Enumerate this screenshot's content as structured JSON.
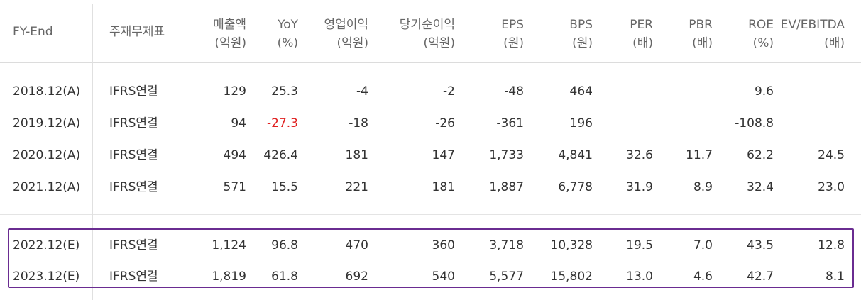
{
  "headers": [
    {
      "line1": "FY-End",
      "line2": ""
    },
    {
      "line1": "주재무제표",
      "line2": ""
    },
    {
      "line1": "매출액",
      "line2": "(억원)"
    },
    {
      "line1": "YoY",
      "line2": "(%)"
    },
    {
      "line1": "영업이익",
      "line2": "(억원)"
    },
    {
      "line1": "당기순이익",
      "line2": "(억원)"
    },
    {
      "line1": "EPS",
      "line2": "(원)"
    },
    {
      "line1": "BPS",
      "line2": "(원)"
    },
    {
      "line1": "PER",
      "line2": "(배)"
    },
    {
      "line1": "PBR",
      "line2": "(배)"
    },
    {
      "line1": "ROE",
      "line2": "(%)"
    },
    {
      "line1": "EV/EBITDA",
      "line2": "(배)"
    }
  ],
  "rows": [
    [
      "2018.12(A)",
      "IFRS연결",
      "129",
      "25.3",
      "-4",
      "-2",
      "-48",
      "464",
      "",
      "",
      "9.6",
      ""
    ],
    [
      "2019.12(A)",
      "IFRS연결",
      "94",
      "-27.3",
      "-18",
      "-26",
      "-361",
      "196",
      "",
      "",
      "-108.8",
      ""
    ],
    [
      "2020.12(A)",
      "IFRS연결",
      "494",
      "426.4",
      "181",
      "147",
      "1,733",
      "4,841",
      "32.6",
      "11.7",
      "62.2",
      "24.5"
    ],
    [
      "2021.12(A)",
      "IFRS연결",
      "571",
      "15.5",
      "221",
      "181",
      "1,887",
      "6,778",
      "31.9",
      "8.9",
      "32.4",
      "23.0"
    ],
    [
      "2022.12(E)",
      "IFRS연결",
      "1,124",
      "96.8",
      "470",
      "360",
      "3,718",
      "10,328",
      "19.5",
      "7.0",
      "43.5",
      "12.8"
    ],
    [
      "2023.12(E)",
      "IFRS연결",
      "1,819",
      "61.8",
      "692",
      "540",
      "5,577",
      "15,802",
      "13.0",
      "4.6",
      "42.7",
      "8.1"
    ]
  ],
  "colors": {
    "negative_yoy": "#e02020",
    "highlight_border": "#6a2c91"
  }
}
